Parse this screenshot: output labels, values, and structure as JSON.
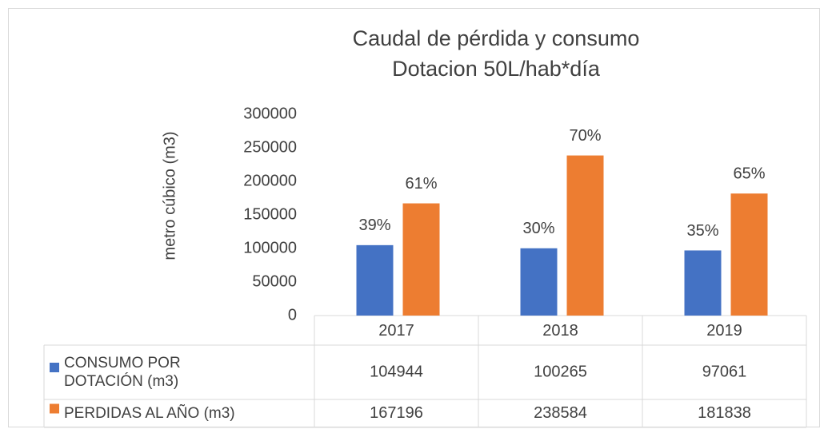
{
  "chart_data": {
    "type": "bar",
    "title": [
      "Caudal de pérdida y consumo",
      "Dotacion 50L/hab*día"
    ],
    "y_label": "metro cúbico (m3)",
    "categories": [
      "2017",
      "2018",
      "2019"
    ],
    "series": [
      {
        "name": "CONSUMO POR DOTACIÓN (m3)",
        "color": "#4472c4",
        "values": [
          104944,
          100265,
          97061
        ],
        "percent_labels": [
          "39%",
          "30%",
          "35%"
        ]
      },
      {
        "name": "PERDIDAS AL AÑO (m3)",
        "color": "#ed7d31",
        "values": [
          167196,
          238584,
          181838
        ],
        "percent_labels": [
          "61%",
          "70%",
          "65%"
        ]
      }
    ],
    "ylim": [
      0,
      300000
    ],
    "yticks": [
      0,
      50000,
      100000,
      150000,
      200000,
      250000,
      300000
    ],
    "grid": false,
    "data_table": true
  }
}
